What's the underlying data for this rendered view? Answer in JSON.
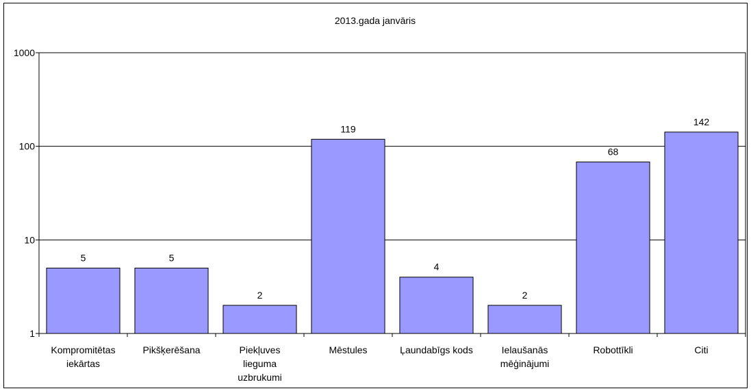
{
  "chart_data": {
    "type": "bar",
    "title": "2013.gada janvāris",
    "xlabel": "",
    "ylabel": "",
    "yscale": "log",
    "ylim": [
      1,
      1000
    ],
    "yticks": [
      "1",
      "10",
      "100",
      "1000"
    ],
    "grid": true,
    "legend": "none",
    "bar_color": "#9999ff",
    "categories": [
      [
        "Kompromitētas",
        "iekārtas"
      ],
      [
        "Pikšķerēšana"
      ],
      [
        "Piekļuves",
        "lieguma",
        "uzbrukumi"
      ],
      [
        "Mēstules"
      ],
      [
        "Ļaundabīgs kods"
      ],
      [
        "Ielaušanās",
        "mēģinājumi"
      ],
      [
        "Robottīkli"
      ],
      [
        "Citi"
      ]
    ],
    "values": [
      5,
      5,
      2,
      119,
      4,
      2,
      68,
      142
    ],
    "labels": [
      "5",
      "5",
      "2",
      "119",
      "4",
      "2",
      "68",
      "142"
    ]
  }
}
